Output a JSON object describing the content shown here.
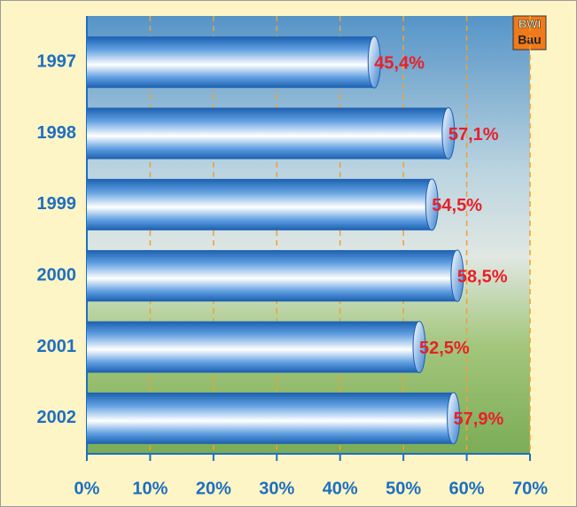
{
  "chart_data": {
    "type": "bar",
    "orientation": "horizontal",
    "categories": [
      "1997",
      "1998",
      "1999",
      "2000",
      "2001",
      "2002"
    ],
    "values": [
      45.4,
      57.1,
      54.5,
      58.5,
      52.5,
      57.9
    ],
    "value_labels": [
      "45,4%",
      "57,1%",
      "54,5%",
      "58,5%",
      "52,5%",
      "57,9%"
    ],
    "color": "#1f6fc0",
    "xlim": [
      0,
      70
    ],
    "xticks": [
      {
        "value": 0,
        "label": "0%"
      },
      {
        "value": 10,
        "label": "10%"
      },
      {
        "value": 20,
        "label": "20%"
      },
      {
        "value": 30,
        "label": "30%"
      },
      {
        "value": 40,
        "label": "40%"
      },
      {
        "value": 50,
        "label": "50%"
      },
      {
        "value": 60,
        "label": "60%"
      },
      {
        "value": 70,
        "label": "70%"
      }
    ],
    "grid": true
  },
  "logo": {
    "line1": "BWI",
    "line2": "Bau"
  }
}
